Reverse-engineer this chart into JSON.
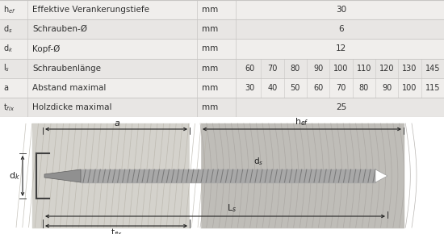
{
  "table_rows": [
    {
      "symbol": "h_ef",
      "sym_display": "h$_{ef}$",
      "description": "Effektive Verankerungstiefe",
      "unit": "mm",
      "single_val": "30",
      "multi": false
    },
    {
      "symbol": "d_s",
      "sym_display": "d$_s$",
      "description": "Schrauben-Ø",
      "unit": "mm",
      "single_val": "6",
      "multi": false
    },
    {
      "symbol": "d_k",
      "sym_display": "d$_k$",
      "description": "Kopf-Ø",
      "unit": "mm",
      "single_val": "12",
      "multi": false
    },
    {
      "symbol": "l_s",
      "sym_display": "l$_s$",
      "description": "Schraubenlänge",
      "unit": "mm",
      "single_val": "",
      "multi": true,
      "vals": [
        60,
        70,
        80,
        90,
        100,
        110,
        120,
        130,
        145
      ]
    },
    {
      "symbol": "a",
      "sym_display": "a",
      "description": "Abstand maximal",
      "unit": "mm",
      "single_val": "",
      "multi": true,
      "vals": [
        30,
        40,
        50,
        60,
        70,
        80,
        90,
        100,
        115
      ]
    },
    {
      "symbol": "t_fix",
      "sym_display": "t$_{fix}$",
      "description": "Holzdicke maximal",
      "unit": "mm",
      "single_val": "25",
      "multi": false
    }
  ],
  "row_bg_colors": [
    "#f0eeec",
    "#e8e6e4"
  ],
  "line_color": "#c8c6c4",
  "text_color": "#303030",
  "diag_left_bg": "#d8d6d0",
  "diag_right_bg": "#c8c6c0",
  "gap_color": "#ffffff",
  "screw_shaft_color": "#a8a8a8",
  "screw_head_color": "#909090",
  "screw_thread_color": "#787878",
  "screw_tip_color": "#e8e8e8",
  "dim_color": "#222222"
}
